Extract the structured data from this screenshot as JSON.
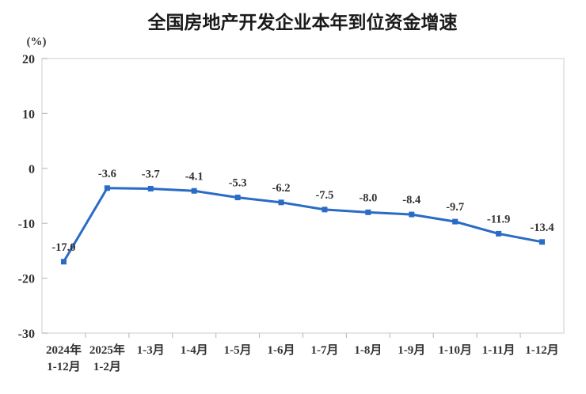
{
  "chart_data": {
    "type": "line",
    "title": "全国房地产开发企业本年到位资金增速",
    "unit_label": "(%)",
    "categories": [
      "2024年\n1-12月",
      "2025年\n1-2月",
      "1-3月",
      "1-4月",
      "1-5月",
      "1-6月",
      "1-7月",
      "1-8月",
      "1-9月",
      "1-10月",
      "1-11月",
      "1-12月"
    ],
    "values": [
      -17.0,
      -3.6,
      -3.7,
      -4.1,
      -5.3,
      -6.2,
      -7.5,
      -8.0,
      -8.4,
      -9.7,
      -11.9,
      -13.4
    ],
    "data_labels": [
      "-17.0",
      "-3.6",
      "-3.7",
      "-4.1",
      "-5.3",
      "-6.2",
      "-7.5",
      "-8.0",
      "-8.4",
      "-9.7",
      "-11.9",
      "-13.4"
    ],
    "ylim": [
      -30,
      20
    ],
    "yticks": [
      20,
      10,
      0,
      -10,
      -20,
      -30
    ],
    "xlabel": "",
    "ylabel": "",
    "grid": false,
    "legend_position": "none",
    "marker": "square",
    "colors": {
      "line": "#2A6BC6",
      "marker": "#2A6BC6",
      "plot_border": "#D9D9D9",
      "tick": "#BFBFBF",
      "axis_text": "#333333",
      "data_label_text": "#333333",
      "title_text": "#1a1a1a",
      "background": "#FFFFFF"
    }
  }
}
